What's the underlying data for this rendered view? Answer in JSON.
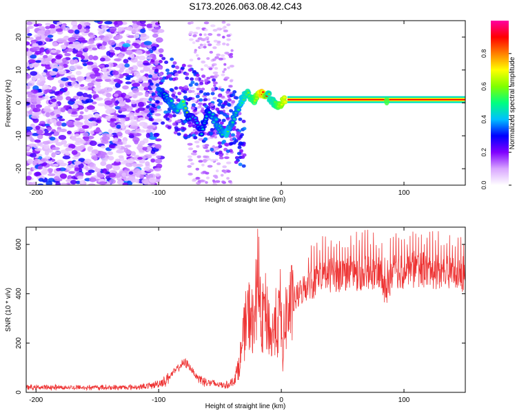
{
  "figure_title": "S173.2026.063.08.42.C43",
  "chart_data": [
    {
      "type": "heatmap",
      "name": "spectrogram",
      "xlabel": "Height of straight line (km)",
      "ylabel": "Frequency (Hz)",
      "xlim": [
        -208,
        150
      ],
      "ylim": [
        -25,
        25
      ],
      "x_ticks": [
        -200,
        -100,
        0,
        100
      ],
      "x_tick_labels": [
        "-200",
        "-100",
        "0",
        "100"
      ],
      "y_ticks": [
        -20,
        -10,
        0,
        10,
        20
      ],
      "y_tick_labels": [
        "-20",
        "-10",
        "0",
        "10",
        "20"
      ],
      "colorbar": {
        "label": "Normalized spectral amplitude",
        "range": [
          0,
          1
        ],
        "ticks": [
          0,
          0.2,
          0.4,
          0.6,
          0.8
        ],
        "tick_labels": [
          "0.0",
          "0.2",
          "0.4",
          "0.6",
          "0.8"
        ],
        "colors": [
          "#ffffff",
          "#d9a6ff",
          "#8000ff",
          "#0000ff",
          "#00c0ff",
          "#00ff80",
          "#80ff00",
          "#ffff00",
          "#ff8000",
          "#ff0000",
          "#ff00a0"
        ]
      },
      "carrier_line": {
        "x_start": 5,
        "x_end": 150,
        "frequency": 1.0,
        "amplitude": 0.9
      },
      "ridge_points": [
        {
          "x": -100,
          "y": 4,
          "a": 0.4
        },
        {
          "x": -95,
          "y": 2,
          "a": 0.35
        },
        {
          "x": -90,
          "y": 0,
          "a": 0.4
        },
        {
          "x": -85,
          "y": -2,
          "a": 0.4
        },
        {
          "x": -80,
          "y": 0,
          "a": 0.5
        },
        {
          "x": -76,
          "y": -4,
          "a": 0.35
        },
        {
          "x": -70,
          "y": -5,
          "a": 0.3
        },
        {
          "x": -65,
          "y": -9,
          "a": 0.35
        },
        {
          "x": -60,
          "y": -2,
          "a": 0.35
        },
        {
          "x": -53,
          "y": -6,
          "a": 0.4
        },
        {
          "x": -48,
          "y": -9,
          "a": 0.4
        },
        {
          "x": -44,
          "y": -9,
          "a": 0.45
        },
        {
          "x": -40,
          "y": -6,
          "a": 0.4
        },
        {
          "x": -36,
          "y": -2,
          "a": 0.4
        },
        {
          "x": -32,
          "y": 1,
          "a": 0.45
        },
        {
          "x": -28,
          "y": 3,
          "a": 0.5
        },
        {
          "x": -22,
          "y": 1,
          "a": 0.55
        },
        {
          "x": -16,
          "y": 3,
          "a": 0.8
        },
        {
          "x": -10,
          "y": 2,
          "a": 0.5
        },
        {
          "x": -6,
          "y": 0,
          "a": 0.5
        },
        {
          "x": -2,
          "y": -1,
          "a": 0.6
        },
        {
          "x": 3,
          "y": 1,
          "a": 0.7
        },
        {
          "x": 86,
          "y": 0.5,
          "a": 0.55
        }
      ]
    },
    {
      "type": "line",
      "name": "snr",
      "xlabel": "Height of straight line (km)",
      "ylabel": "SNR (10 * v/v)",
      "xlim": [
        -208,
        150
      ],
      "ylim": [
        0,
        670
      ],
      "x_ticks": [
        -200,
        -100,
        0,
        100
      ],
      "x_tick_labels": [
        "-200",
        "-100",
        "0",
        "100"
      ],
      "y_ticks": [
        0,
        200,
        400,
        600
      ],
      "y_tick_labels": [
        "0",
        "200",
        "400",
        "600"
      ],
      "line_color": "#ee3333",
      "series": [
        {
          "name": "SNR",
          "x": [
            -208,
            -190,
            -170,
            -150,
            -130,
            -115,
            -105,
            -95,
            -88,
            -82,
            -78,
            -74,
            -70,
            -65,
            -60,
            -55,
            -50,
            -45,
            -40,
            -36,
            -33,
            -30,
            -28,
            -25,
            -22,
            -20,
            -19,
            -18,
            -16,
            -14,
            -12,
            -10,
            -8,
            -5,
            -3,
            -1,
            0,
            1,
            3,
            6,
            10,
            15,
            20,
            30,
            40,
            50,
            60,
            70,
            80,
            85,
            90,
            100,
            110,
            120,
            130,
            140,
            150
          ],
          "y": [
            20,
            20,
            20,
            20,
            20,
            22,
            28,
            45,
            80,
            110,
            120,
            100,
            70,
            50,
            40,
            35,
            30,
            30,
            40,
            80,
            150,
            250,
            300,
            320,
            250,
            450,
            660,
            350,
            250,
            350,
            300,
            280,
            200,
            300,
            250,
            350,
            280,
            150,
            300,
            330,
            370,
            400,
            430,
            460,
            475,
            480,
            485,
            490,
            480,
            400,
            490,
            495,
            500,
            495,
            490,
            485,
            480
          ]
        }
      ]
    }
  ]
}
